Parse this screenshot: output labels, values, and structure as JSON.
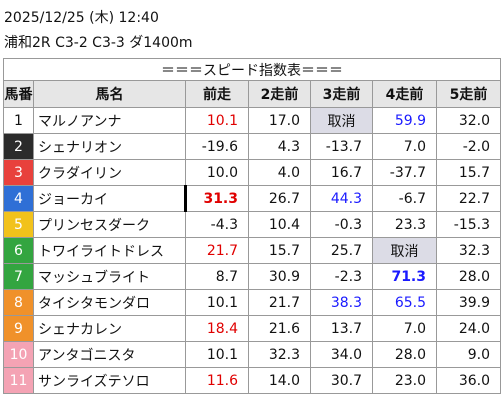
{
  "header": {
    "datetime": "2025/12/25 (木) 12:40",
    "race": "浦和2R C3-2 C3-3 ダ1400m"
  },
  "table": {
    "title": "＝＝＝スピード指数表＝＝＝",
    "columns": [
      "馬番",
      "馬名",
      "前走",
      "2走前",
      "3走前",
      "4走前",
      "5走前"
    ],
    "rows": [
      {
        "number": "1",
        "name": "マルノアンナ",
        "frame_color": "#ffffff",
        "values": [
          "10.1",
          "17.0",
          "取消",
          "59.9",
          "32.0"
        ]
      },
      {
        "number": "2",
        "name": "シェナリオン",
        "frame_color": "#2b2b2b",
        "values": [
          "-19.6",
          "4.3",
          "-13.7",
          "7.0",
          "-2.0"
        ]
      },
      {
        "number": "3",
        "name": "クラダイリン",
        "frame_color": "#e8413c",
        "values": [
          "10.0",
          "4.0",
          "16.7",
          "-37.7",
          "15.7"
        ]
      },
      {
        "number": "4",
        "name": "ジョーカイ",
        "frame_color": "#2f6fd6",
        "values": [
          "31.3",
          "26.7",
          "44.3",
          "-6.7",
          "22.7"
        ]
      },
      {
        "number": "5",
        "name": "プリンセスダーク",
        "frame_color": "#f2c21b",
        "values": [
          "-4.3",
          "10.4",
          "-0.3",
          "23.3",
          "-15.3"
        ]
      },
      {
        "number": "6",
        "name": "トワイライトドレス",
        "frame_color": "#33a540",
        "values": [
          "21.7",
          "15.7",
          "25.7",
          "取消",
          "32.3"
        ]
      },
      {
        "number": "7",
        "name": "マッシュブライト",
        "frame_color": "#33a540",
        "values": [
          "8.7",
          "30.9",
          "-2.3",
          "71.3",
          "28.0"
        ]
      },
      {
        "number": "8",
        "name": "タイシタモンダロ",
        "frame_color": "#f0912a",
        "values": [
          "10.1",
          "21.7",
          "38.3",
          "65.5",
          "39.9"
        ]
      },
      {
        "number": "9",
        "name": "シェナカレン",
        "frame_color": "#f0912a",
        "values": [
          "18.4",
          "21.6",
          "13.7",
          "7.0",
          "24.0"
        ]
      },
      {
        "number": "10",
        "name": "アンタゴニスタ",
        "frame_color": "#f4a3b4",
        "values": [
          "10.1",
          "32.3",
          "34.0",
          "28.0",
          "9.0"
        ]
      },
      {
        "number": "11",
        "name": "サンライズテソロ",
        "frame_color": "#f4a3b4",
        "values": [
          "11.6",
          "14.0",
          "30.7",
          "23.0",
          "36.0"
        ]
      }
    ]
  }
}
